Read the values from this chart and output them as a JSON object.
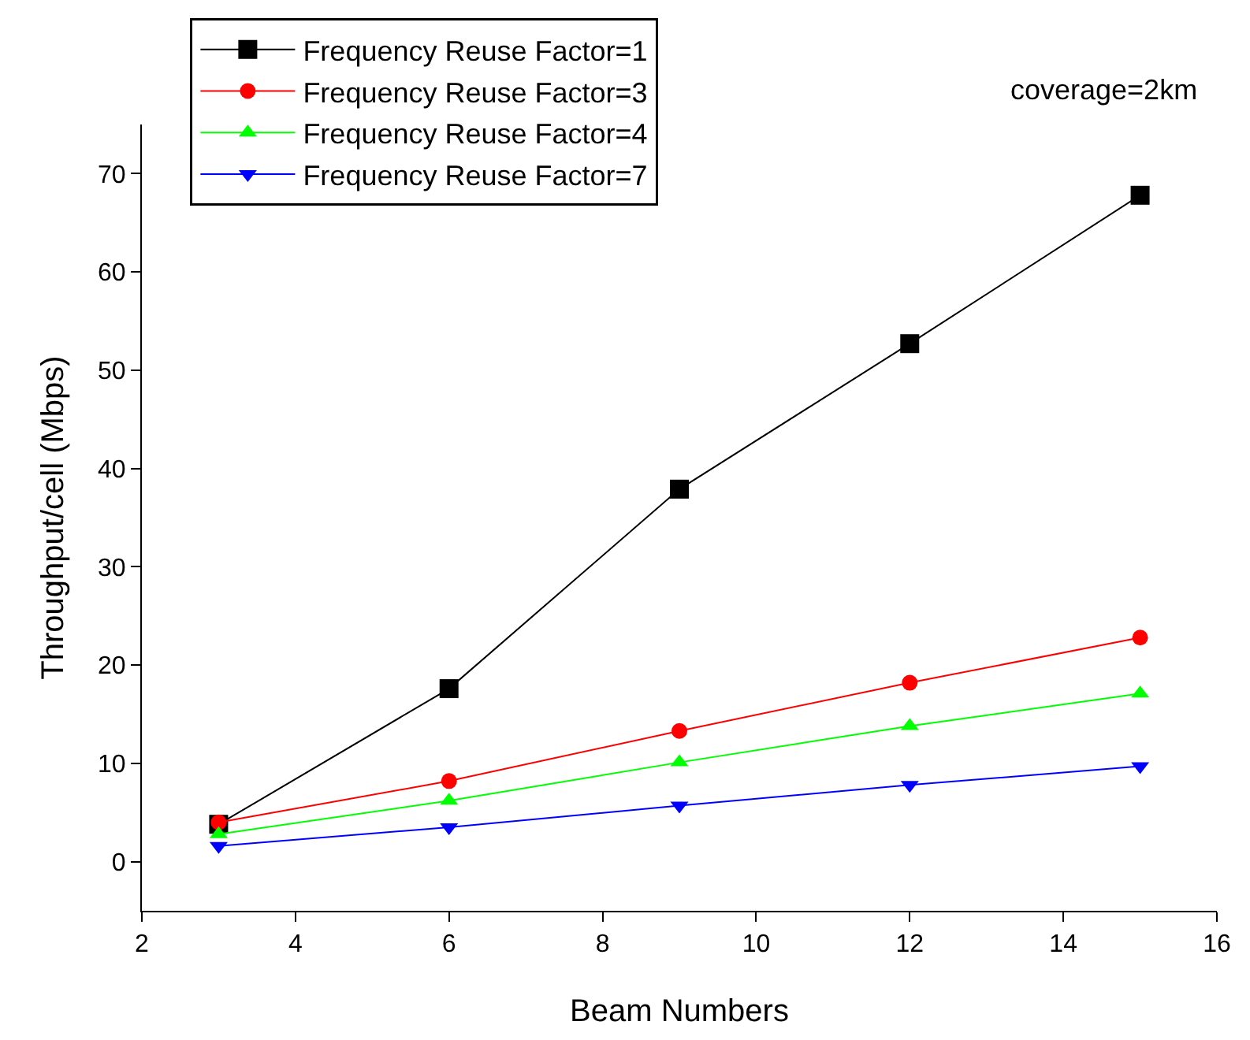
{
  "chart_data": {
    "type": "line",
    "xlabel": "Beam Numbers",
    "ylabel": "Throughput/cell (Mbps)",
    "x": [
      3,
      6,
      9,
      12,
      15
    ],
    "series": [
      {
        "name": "Frequency Reuse Factor=1",
        "color": "#000000",
        "marker": "square",
        "values": [
          3.8,
          17.6,
          37.9,
          52.7,
          67.8
        ]
      },
      {
        "name": "Frequency Reuse Factor=3",
        "color": "#ff0000",
        "marker": "circle",
        "values": [
          4.0,
          8.2,
          13.3,
          18.2,
          22.8
        ]
      },
      {
        "name": "Frequency Reuse Factor=4",
        "color": "#00ff00",
        "marker": "triangle",
        "values": [
          2.8,
          6.2,
          10.1,
          13.8,
          17.1
        ]
      },
      {
        "name": "Frequency Reuse Factor=7",
        "color": "#0000ff",
        "marker": "triangle-down",
        "values": [
          1.6,
          3.5,
          5.7,
          7.8,
          9.7
        ]
      }
    ],
    "xlim": [
      2,
      16
    ],
    "xticks": [
      2,
      4,
      6,
      8,
      10,
      12,
      14,
      16
    ],
    "ylim": [
      -5,
      75
    ],
    "yticks": [
      0,
      10,
      20,
      30,
      40,
      50,
      60,
      70
    ],
    "grid": false,
    "legend": "top left",
    "line_style": "solid",
    "annotations": [
      "coverage=2km"
    ]
  }
}
